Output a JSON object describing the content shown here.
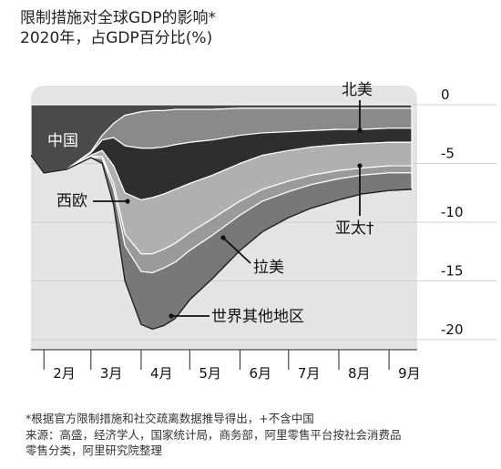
{
  "title": "限制措施对全球GDP的影响*",
  "subtitle": "2020年，占GDP百分比(%)",
  "footnotes": [
    "*根据官方限制措施和社交疏离数据推导得出，+不含中国",
    "来源：高盛，经济学人，国家统计局，商务部，阿里零售平台按社会消费品",
    "零售分类，阿里研究院整理"
  ],
  "colors": {
    "background": "#ffffff",
    "plot_bg": "#e4e4e4",
    "grid": "#cfcfcf",
    "china": "#4a4a4a",
    "north_america": "#8a8a8a",
    "western_europe": "#2e2e2e",
    "asia_pacific": "#b0b0b0",
    "latin_america": "#9a9a9a",
    "rest_of_world": "#787878",
    "band_edge": "#ffffff"
  },
  "chart_data": {
    "type": "area",
    "stacked": true,
    "title": "限制措施对全球GDP的影响*",
    "subtitle": "2020年，占GDP百分比(%)",
    "x_ticks": [
      "2月",
      "3月",
      "4月",
      "5月",
      "6月",
      "7月",
      "8月",
      "9月"
    ],
    "x_tick_dates": [
      "2020-02-01",
      "2020-03-01",
      "2020-04-01",
      "2020-05-01",
      "2020-06-01",
      "2020-07-01",
      "2020-08-01",
      "2020-09-01"
    ],
    "y_ticks": [
      0,
      -5,
      -10,
      -15,
      -20
    ],
    "ylim": [
      -20,
      0
    ],
    "y_axis_side": "right",
    "grid": true,
    "dates": [
      "2020-01-24",
      "2020-02-01",
      "2020-02-15",
      "2020-03-01",
      "2020-03-08",
      "2020-03-15",
      "2020-03-22",
      "2020-04-01",
      "2020-04-08",
      "2020-04-15",
      "2020-04-22",
      "2020-05-01",
      "2020-05-15",
      "2020-06-01",
      "2020-06-15",
      "2020-07-01",
      "2020-07-15",
      "2020-08-01",
      "2020-08-15",
      "2020-09-01",
      "2020-09-15"
    ],
    "series": [
      {
        "name": "中国",
        "values": [
          -4.3,
          -5.8,
          -5.5,
          -4.0,
          -2.6,
          -1.6,
          -0.9,
          -0.6,
          -0.5,
          -0.5,
          -0.4,
          -0.4,
          -0.4,
          -0.3,
          -0.3,
          -0.3,
          -0.3,
          -0.3,
          -0.3,
          -0.3,
          -0.3
        ]
      },
      {
        "name": "北美",
        "values": [
          0.0,
          0.0,
          0.0,
          -0.1,
          -0.4,
          -1.2,
          -2.6,
          -3.1,
          -3.2,
          -3.1,
          -3.0,
          -2.8,
          -2.6,
          -2.3,
          -2.1,
          -2.0,
          -1.9,
          -1.8,
          -1.8,
          -1.7,
          -1.7
        ]
      },
      {
        "name": "西欧",
        "values": [
          0.0,
          0.0,
          0.0,
          -0.2,
          -0.9,
          -2.4,
          -4.0,
          -4.4,
          -4.2,
          -4.0,
          -3.8,
          -3.5,
          -3.0,
          -2.4,
          -1.9,
          -1.6,
          -1.4,
          -1.3,
          -1.2,
          -1.2,
          -1.2
        ]
      },
      {
        "name": "亚太†",
        "values": [
          0.0,
          0.0,
          0.0,
          -0.1,
          -0.5,
          -1.5,
          -3.5,
          -4.6,
          -4.8,
          -4.7,
          -4.6,
          -4.2,
          -3.7,
          -3.2,
          -2.9,
          -2.6,
          -2.4,
          -2.2,
          -2.1,
          -2.0,
          -2.0
        ]
      },
      {
        "name": "拉美",
        "values": [
          0.0,
          0.0,
          0.0,
          -0.05,
          -0.2,
          -0.5,
          -1.0,
          -1.5,
          -1.6,
          -1.6,
          -1.6,
          -1.5,
          -1.4,
          -1.2,
          -1.0,
          -0.9,
          -0.8,
          -0.7,
          -0.6,
          -0.6,
          -0.6
        ]
      },
      {
        "name": "世界其他地区",
        "values": [
          0.0,
          0.0,
          0.0,
          -0.05,
          -0.4,
          -1.3,
          -3.0,
          -4.5,
          -4.8,
          -4.9,
          -4.8,
          -4.2,
          -3.7,
          -3.0,
          -2.6,
          -2.2,
          -2.0,
          -1.8,
          -1.6,
          -1.5,
          -1.4
        ]
      }
    ]
  }
}
